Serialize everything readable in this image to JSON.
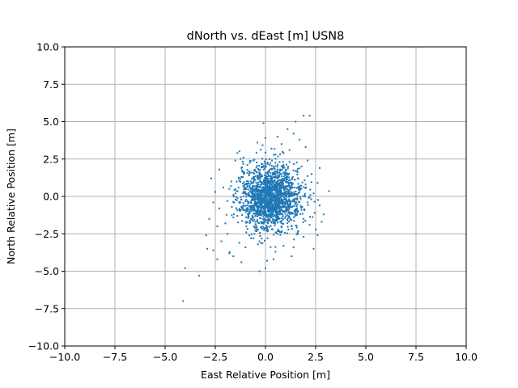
{
  "chart_data": {
    "type": "scatter",
    "title": "dNorth vs. dEast [m] USN8",
    "xlabel": "East Relative Position [m]",
    "ylabel": "North Relative Position [m]",
    "xlim": [
      -10,
      10
    ],
    "ylim": [
      -10,
      10
    ],
    "xticks": [
      -10,
      -7.5,
      -5,
      -2.5,
      0,
      2.5,
      5,
      7.5,
      10
    ],
    "yticks": [
      -10,
      -7.5,
      -5,
      -2.5,
      0,
      2.5,
      5,
      7.5,
      10
    ],
    "xtick_labels": [
      "−10.0",
      "−7.5",
      "−5.0",
      "−2.5",
      "0.0",
      "2.5",
      "5.0",
      "7.5",
      "10.0"
    ],
    "ytick_labels": [
      "−10.0",
      "−7.5",
      "−5.0",
      "−2.5",
      "0.0",
      "2.5",
      "5.0",
      "7.5",
      "10.0"
    ],
    "grid": true,
    "marker_color": "#1f77b4",
    "series": [
      {
        "points": [
          [
            0.3,
            0.1
          ],
          [
            0.1,
            0.3
          ],
          [
            -0.2,
            0.2
          ],
          [
            0.5,
            -0.1
          ],
          [
            0.2,
            -0.4
          ],
          [
            -0.4,
            -0.2
          ],
          [
            0.6,
            0.4
          ],
          [
            0.0,
            0.7
          ],
          [
            -0.6,
            0.5
          ],
          [
            0.8,
            -0.3
          ],
          [
            0.4,
            -0.8
          ],
          [
            -0.3,
            -0.7
          ],
          [
            0.9,
            0.6
          ],
          [
            0.2,
            1.0
          ],
          [
            -0.8,
            0.1
          ],
          [
            1.0,
            0.1
          ],
          [
            0.6,
            1.2
          ],
          [
            -0.5,
            1.1
          ],
          [
            1.2,
            -0.7
          ],
          [
            0.7,
            -1.1
          ],
          [
            -0.9,
            -0.6
          ],
          [
            1.3,
            0.9
          ],
          [
            0.1,
            1.5
          ],
          [
            -1.1,
            0.7
          ],
          [
            1.4,
            -0.2
          ],
          [
            0.9,
            1.6
          ],
          [
            -0.7,
            1.6
          ],
          [
            1.6,
            -1.1
          ],
          [
            0.3,
            -1.4
          ],
          [
            -1.3,
            -0.9
          ],
          [
            1.7,
            0.4
          ],
          [
            0.4,
            2.0
          ],
          [
            -1.2,
            1.3
          ],
          [
            1.1,
            -1.6
          ],
          [
            -0.2,
            -1.8
          ],
          [
            1.5,
            1.7
          ],
          [
            -1.5,
            0.2
          ],
          [
            0.7,
            2.3
          ],
          [
            -0.9,
            2.1
          ],
          [
            1.9,
            -1.5
          ],
          [
            0.0,
            -2.1
          ],
          [
            -1.6,
            -1.4
          ],
          [
            2.0,
            0.8
          ],
          [
            0.2,
            2.5
          ],
          [
            -1.7,
            1.0
          ],
          [
            1.3,
            -2.0
          ],
          [
            -0.5,
            -2.3
          ],
          [
            1.8,
            2.0
          ],
          [
            -1.9,
            -0.3
          ],
          [
            0.5,
            2.8
          ],
          [
            -1.1,
            2.6
          ],
          [
            2.2,
            -1.9
          ],
          [
            0.6,
            -2.5
          ],
          [
            -2.0,
            -1.8
          ],
          [
            2.4,
            0.2
          ],
          [
            0.9,
            2.9
          ],
          [
            -2.1,
            0.6
          ],
          [
            1.6,
            -2.4
          ],
          [
            -0.8,
            -2.6
          ],
          [
            2.1,
            2.4
          ],
          [
            -2.3,
            -0.8
          ],
          [
            0.3,
            3.2
          ],
          [
            -1.5,
            2.4
          ],
          [
            2.5,
            -2.2
          ],
          [
            0.1,
            -2.8
          ],
          [
            -2.4,
            -2.0
          ],
          [
            2.7,
            -0.6
          ],
          [
            1.2,
            3.1
          ],
          [
            -2.5,
            0.3
          ],
          [
            1.9,
            -2.7
          ],
          [
            -0.3,
            -3.0
          ],
          [
            2.3,
            1.5
          ],
          [
            -1.9,
            -2.5
          ],
          [
            0.8,
            3.5
          ],
          [
            -1.3,
            -3.1
          ],
          [
            2.8,
            -1.7
          ],
          [
            -2.6,
            -0.4
          ],
          [
            1.7,
            3.8
          ],
          [
            -0.4,
            3.6
          ],
          [
            2.6,
            -2.6
          ],
          [
            -1.0,
            -3.4
          ],
          [
            -2.2,
            -3.0
          ],
          [
            1.4,
            4.2
          ],
          [
            0.9,
            -3.3
          ],
          [
            -1.8,
            -3.8
          ],
          [
            1.9,
            5.4
          ],
          [
            2.2,
            5.4
          ],
          [
            1.1,
            4.5
          ],
          [
            1.5,
            5.0
          ],
          [
            -0.1,
            4.9
          ],
          [
            0.6,
            4.0
          ],
          [
            -1.2,
            -4.4
          ],
          [
            -2.4,
            -4.2
          ],
          [
            -2.6,
            -3.6
          ],
          [
            -0.3,
            -5.0
          ],
          [
            0.0,
            -4.8
          ],
          [
            -3.3,
            -5.3
          ],
          [
            -4.0,
            -4.8
          ],
          [
            -4.1,
            -7.0
          ],
          [
            -2.9,
            -3.5
          ],
          [
            -1.6,
            -4.0
          ],
          [
            2.4,
            -3.5
          ],
          [
            1.3,
            -4.0
          ],
          [
            0.4,
            -4.2
          ],
          [
            -2.8,
            -1.5
          ],
          [
            2.7,
            1.9
          ],
          [
            -2.3,
            1.8
          ],
          [
            2.0,
            3.3
          ],
          [
            -1.4,
            2.9
          ],
          [
            0.0,
            3.9
          ],
          [
            2.9,
            -1.2
          ],
          [
            2.6,
            0.9
          ],
          [
            -2.7,
            1.2
          ],
          [
            1.4,
            -3.4
          ],
          [
            0.5,
            -3.7
          ],
          [
            -0.6,
            2.4
          ],
          [
            -0.2,
            -1.2
          ],
          [
            0.4,
            1.3
          ],
          [
            1.0,
            -0.5
          ],
          [
            -1.0,
            0.3
          ],
          [
            0.6,
            -0.6
          ],
          [
            -0.4,
            0.8
          ],
          [
            0.8,
            0.9
          ],
          [
            -0.7,
            -1.0
          ],
          [
            1.1,
            1.3
          ],
          [
            0.3,
            -1.7
          ],
          [
            -1.2,
            1.9
          ],
          [
            1.6,
            0.6
          ],
          [
            -1.4,
            -1.3
          ],
          [
            0.6,
            1.8
          ],
          [
            1.8,
            -0.9
          ],
          [
            -0.9,
            -1.7
          ],
          [
            0.2,
            2.1
          ],
          [
            -1.8,
            0.5
          ],
          [
            2.1,
            -0.4
          ],
          [
            1.2,
            2.3
          ]
        ]
      }
    ]
  }
}
